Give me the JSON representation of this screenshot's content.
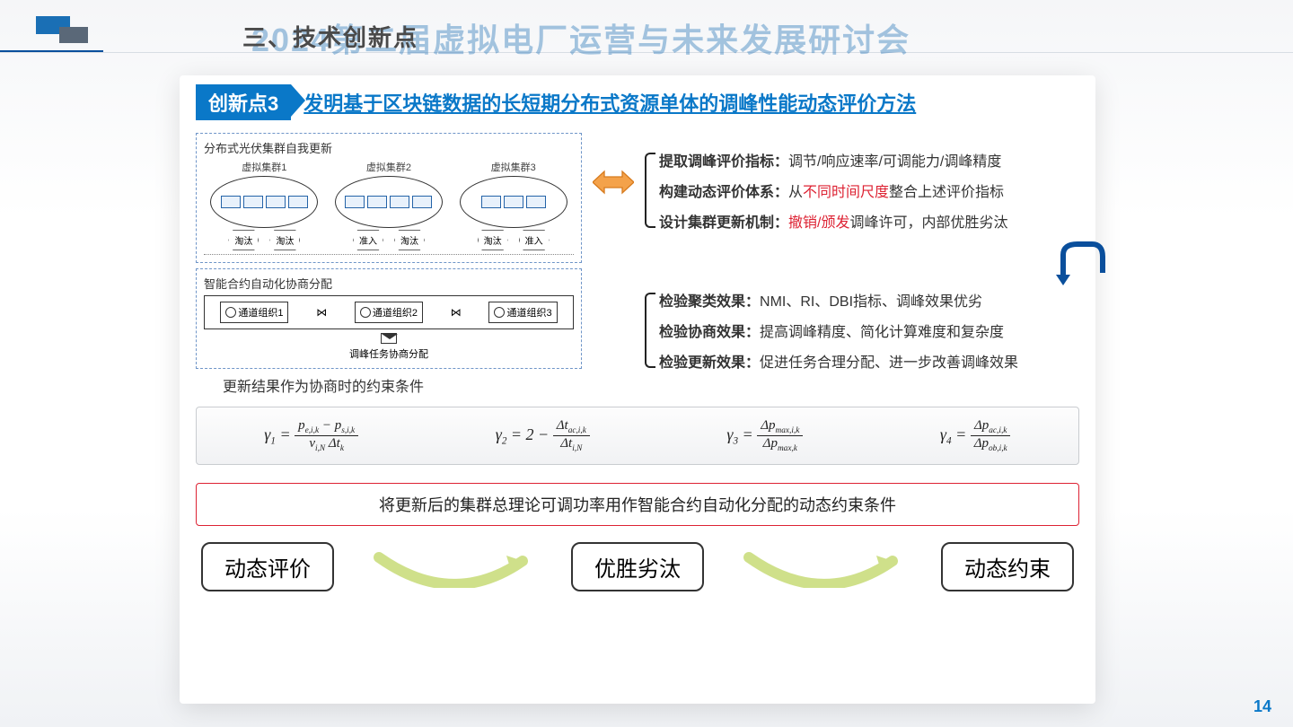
{
  "header": {
    "section_label": "三、技术创新点",
    "watermark": "2024第二届虚拟电厂运营与未来发展研讨会"
  },
  "badge": "创新点3",
  "innovation_title": "发明基于区块链数据的长短期分布式资源单体的调峰性能动态评价方法",
  "diagram": {
    "box1_title": "分布式光伏集群自我更新",
    "clusters": [
      "虚拟集群1",
      "虚拟集群2",
      "虚拟集群3"
    ],
    "penta_out": "淘汰",
    "penta_in": "准入",
    "box2_title": "智能合约自动化协商分配",
    "orgs": [
      "通道组织1",
      "通道组织2",
      "通道组织3"
    ],
    "envelope_caption": "调峰任务协商分配",
    "caption": "更新结果作为协商时的约束条件"
  },
  "bullets_top": [
    {
      "bold": "提取调峰评价指标：",
      "rest": "调节/响应速率/可调能力/调峰精度",
      "red": ""
    },
    {
      "bold": "构建动态评价体系：",
      "rest_pre": "从",
      "red": "不同时间尺度",
      "rest_post": "整合上述评价指标"
    },
    {
      "bold": "设计集群更新机制：",
      "rest_pre": "",
      "red": "撤销/颁发",
      "rest_post": "调峰许可，内部优胜劣汰"
    }
  ],
  "bullets_bottom": [
    {
      "bold": "检验聚类效果：",
      "rest": "NMI、RI、DBI指标、调峰效果优劣"
    },
    {
      "bold": "检验协商效果：",
      "rest": "提高调峰精度、简化计算难度和复杂度"
    },
    {
      "bold": "检验更新效果：",
      "rest": "促进任务合理分配、进一步改善调峰效果"
    }
  ],
  "formulas": {
    "g1": {
      "lhs": "γ",
      "sub": "1",
      "num": "p<sub>e,i,k</sub> − p<sub>s,i,k</sub>",
      "den": "v<sub>i,N</sub> Δt<sub>k</sub>"
    },
    "g2": {
      "lhs": "γ",
      "sub": "2",
      "pre": "2 − ",
      "num": "Δt<sub>ac,i,k</sub>",
      "den": "Δt<sub>i,N</sub>"
    },
    "g3": {
      "lhs": "γ",
      "sub": "3",
      "num": "Δp<sub>max,i,k</sub>",
      "den": "Δp<sub>max,k</sub>"
    },
    "g4": {
      "lhs": "γ",
      "sub": "4",
      "num": "Δp<sub>ac,i,k</sub>",
      "den": "Δp<sub>ob,i,k</sub>"
    }
  },
  "red_box": "将更新后的集群总理论可调功率用作智能合约自动化分配的动态约束条件",
  "chips": [
    "动态评价",
    "优胜劣汰",
    "动态约束"
  ],
  "page_number": "14",
  "colors": {
    "primary_blue": "#0a78c8",
    "dark_blue": "#0a4f9c",
    "red": "#d22",
    "arrow_fill": "#f4a24a",
    "curve": "#cfe08a"
  }
}
